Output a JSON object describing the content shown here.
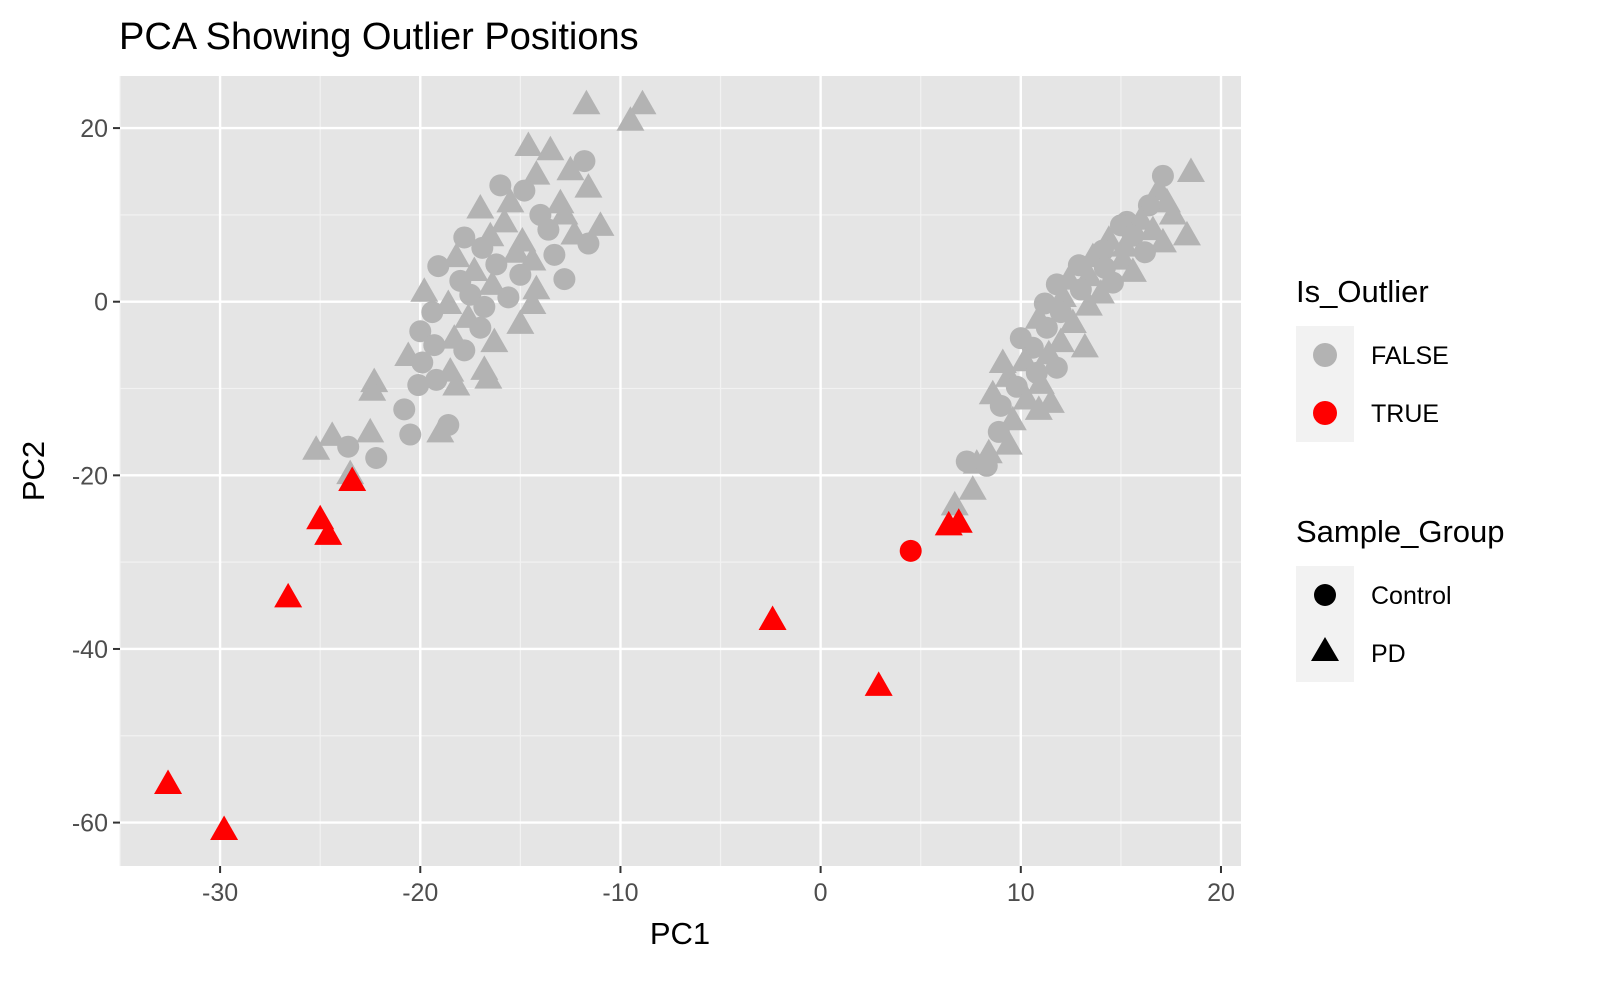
{
  "chart_data": {
    "type": "scatter",
    "title": "PCA Showing Outlier Positions",
    "xlabel": "PC1",
    "ylabel": "PC2",
    "xlim": [
      -35,
      21
    ],
    "ylim": [
      -65,
      26
    ],
    "x_ticks": [
      -30,
      -20,
      -10,
      0,
      10,
      20
    ],
    "y_ticks": [
      -60,
      -40,
      -20,
      0,
      20
    ],
    "grid": true,
    "legend_position": "right",
    "legends": [
      {
        "title": "Is_Outlier",
        "entries": [
          {
            "label": "FALSE",
            "color": "#b3b3b3",
            "shape": "circle"
          },
          {
            "label": "TRUE",
            "color": "#ff0000",
            "shape": "circle"
          }
        ]
      },
      {
        "title": "Sample_Group",
        "entries": [
          {
            "label": "Control",
            "color": "#000000",
            "shape": "circle"
          },
          {
            "label": "PD",
            "color": "#000000",
            "shape": "triangle"
          }
        ]
      }
    ],
    "colors": {
      "FALSE": "#b3b3b3",
      "TRUE": "#ff0000"
    },
    "points": [
      {
        "x": -11.7,
        "y": 22.8,
        "group": "PD",
        "outlier": false
      },
      {
        "x": -8.9,
        "y": 22.8,
        "group": "PD",
        "outlier": false
      },
      {
        "x": -9.5,
        "y": 20.9,
        "group": "PD",
        "outlier": false
      },
      {
        "x": -14.6,
        "y": 18.0,
        "group": "PD",
        "outlier": false
      },
      {
        "x": -13.5,
        "y": 17.5,
        "group": "PD",
        "outlier": false
      },
      {
        "x": -11.8,
        "y": 16.2,
        "group": "Control",
        "outlier": false
      },
      {
        "x": -12.5,
        "y": 15.2,
        "group": "PD",
        "outlier": false
      },
      {
        "x": -14.2,
        "y": 14.7,
        "group": "PD",
        "outlier": false
      },
      {
        "x": -16.0,
        "y": 13.4,
        "group": "Control",
        "outlier": false
      },
      {
        "x": -11.6,
        "y": 13.2,
        "group": "PD",
        "outlier": false
      },
      {
        "x": -14.8,
        "y": 12.8,
        "group": "Control",
        "outlier": false
      },
      {
        "x": -15.5,
        "y": 11.5,
        "group": "PD",
        "outlier": false
      },
      {
        "x": -13.0,
        "y": 11.4,
        "group": "PD",
        "outlier": false
      },
      {
        "x": -17.0,
        "y": 10.8,
        "group": "PD",
        "outlier": false
      },
      {
        "x": -14.0,
        "y": 10.0,
        "group": "Control",
        "outlier": false
      },
      {
        "x": -12.8,
        "y": 10.1,
        "group": "PD",
        "outlier": false
      },
      {
        "x": -15.8,
        "y": 9.2,
        "group": "PD",
        "outlier": false
      },
      {
        "x": -11.0,
        "y": 8.8,
        "group": "PD",
        "outlier": false
      },
      {
        "x": -13.6,
        "y": 8.3,
        "group": "Control",
        "outlier": false
      },
      {
        "x": -12.3,
        "y": 7.8,
        "group": "PD",
        "outlier": false
      },
      {
        "x": -16.5,
        "y": 7.6,
        "group": "PD",
        "outlier": false
      },
      {
        "x": -17.8,
        "y": 7.4,
        "group": "Control",
        "outlier": false
      },
      {
        "x": -14.9,
        "y": 7.0,
        "group": "PD",
        "outlier": false
      },
      {
        "x": -11.6,
        "y": 6.7,
        "group": "Control",
        "outlier": false
      },
      {
        "x": -16.9,
        "y": 6.2,
        "group": "Control",
        "outlier": false
      },
      {
        "x": -15.2,
        "y": 5.7,
        "group": "PD",
        "outlier": false
      },
      {
        "x": -13.3,
        "y": 5.4,
        "group": "Control",
        "outlier": false
      },
      {
        "x": -18.2,
        "y": 5.2,
        "group": "PD",
        "outlier": false
      },
      {
        "x": -14.4,
        "y": 4.8,
        "group": "PD",
        "outlier": false
      },
      {
        "x": -16.2,
        "y": 4.3,
        "group": "Control",
        "outlier": false
      },
      {
        "x": -19.1,
        "y": 4.1,
        "group": "Control",
        "outlier": false
      },
      {
        "x": -17.3,
        "y": 3.6,
        "group": "PD",
        "outlier": false
      },
      {
        "x": -15.0,
        "y": 3.1,
        "group": "Control",
        "outlier": false
      },
      {
        "x": -12.8,
        "y": 2.6,
        "group": "Control",
        "outlier": false
      },
      {
        "x": -18.0,
        "y": 2.4,
        "group": "Control",
        "outlier": false
      },
      {
        "x": -16.4,
        "y": 2.0,
        "group": "PD",
        "outlier": false
      },
      {
        "x": -19.8,
        "y": 1.2,
        "group": "PD",
        "outlier": false
      },
      {
        "x": -14.2,
        "y": 1.5,
        "group": "PD",
        "outlier": false
      },
      {
        "x": -17.5,
        "y": 0.8,
        "group": "Control",
        "outlier": false
      },
      {
        "x": -15.6,
        "y": 0.5,
        "group": "Control",
        "outlier": false
      },
      {
        "x": -18.6,
        "y": -0.2,
        "group": "PD",
        "outlier": false
      },
      {
        "x": -16.8,
        "y": -0.6,
        "group": "Control",
        "outlier": false
      },
      {
        "x": -14.4,
        "y": -0.2,
        "group": "PD",
        "outlier": false
      },
      {
        "x": -19.4,
        "y": -1.2,
        "group": "Control",
        "outlier": false
      },
      {
        "x": -17.6,
        "y": -1.8,
        "group": "PD",
        "outlier": false
      },
      {
        "x": -15.0,
        "y": -2.5,
        "group": "PD",
        "outlier": false
      },
      {
        "x": -20.0,
        "y": -3.4,
        "group": "Control",
        "outlier": false
      },
      {
        "x": -17.0,
        "y": -3.0,
        "group": "Control",
        "outlier": false
      },
      {
        "x": -18.3,
        "y": -4.2,
        "group": "PD",
        "outlier": false
      },
      {
        "x": -19.3,
        "y": -5.0,
        "group": "Control",
        "outlier": false
      },
      {
        "x": -16.3,
        "y": -4.6,
        "group": "PD",
        "outlier": false
      },
      {
        "x": -20.6,
        "y": -6.2,
        "group": "PD",
        "outlier": false
      },
      {
        "x": -17.8,
        "y": -5.6,
        "group": "Control",
        "outlier": false
      },
      {
        "x": -19.9,
        "y": -7.0,
        "group": "Control",
        "outlier": false
      },
      {
        "x": -16.8,
        "y": -7.8,
        "group": "PD",
        "outlier": false
      },
      {
        "x": -18.5,
        "y": -8.0,
        "group": "PD",
        "outlier": false
      },
      {
        "x": -22.3,
        "y": -9.2,
        "group": "PD",
        "outlier": false
      },
      {
        "x": -20.1,
        "y": -9.6,
        "group": "Control",
        "outlier": false
      },
      {
        "x": -19.2,
        "y": -9.0,
        "group": "Control",
        "outlier": false
      },
      {
        "x": -16.6,
        "y": -8.8,
        "group": "PD",
        "outlier": false
      },
      {
        "x": -22.4,
        "y": -10.2,
        "group": "PD",
        "outlier": false
      },
      {
        "x": -18.2,
        "y": -9.6,
        "group": "PD",
        "outlier": false
      },
      {
        "x": -20.8,
        "y": -12.4,
        "group": "Control",
        "outlier": false
      },
      {
        "x": -18.6,
        "y": -14.2,
        "group": "Control",
        "outlier": false
      },
      {
        "x": -24.4,
        "y": -15.4,
        "group": "PD",
        "outlier": false
      },
      {
        "x": -22.5,
        "y": -15.0,
        "group": "PD",
        "outlier": false
      },
      {
        "x": -20.5,
        "y": -15.3,
        "group": "Control",
        "outlier": false
      },
      {
        "x": -19.0,
        "y": -15.0,
        "group": "PD",
        "outlier": false
      },
      {
        "x": -23.6,
        "y": -16.7,
        "group": "Control",
        "outlier": false
      },
      {
        "x": -25.2,
        "y": -17.0,
        "group": "PD",
        "outlier": false
      },
      {
        "x": -22.2,
        "y": -18.0,
        "group": "Control",
        "outlier": false
      },
      {
        "x": -23.5,
        "y": -19.8,
        "group": "PD",
        "outlier": false
      },
      {
        "x": 17.1,
        "y": 14.5,
        "group": "Control",
        "outlier": false
      },
      {
        "x": 18.5,
        "y": 15.0,
        "group": "PD",
        "outlier": false
      },
      {
        "x": 16.9,
        "y": 12.9,
        "group": "PD",
        "outlier": false
      },
      {
        "x": 17.3,
        "y": 11.5,
        "group": "PD",
        "outlier": false
      },
      {
        "x": 16.4,
        "y": 11.1,
        "group": "Control",
        "outlier": false
      },
      {
        "x": 17.6,
        "y": 10.1,
        "group": "PD",
        "outlier": false
      },
      {
        "x": 15.3,
        "y": 9.2,
        "group": "Control",
        "outlier": false
      },
      {
        "x": 16.0,
        "y": 9.5,
        "group": "PD",
        "outlier": false
      },
      {
        "x": 15.0,
        "y": 8.8,
        "group": "Control",
        "outlier": false
      },
      {
        "x": 16.6,
        "y": 8.3,
        "group": "PD",
        "outlier": false
      },
      {
        "x": 18.3,
        "y": 7.7,
        "group": "PD",
        "outlier": false
      },
      {
        "x": 15.6,
        "y": 7.6,
        "group": "Control",
        "outlier": false
      },
      {
        "x": 14.4,
        "y": 7.2,
        "group": "PD",
        "outlier": false
      },
      {
        "x": 17.1,
        "y": 6.9,
        "group": "PD",
        "outlier": false
      },
      {
        "x": 15.2,
        "y": 6.4,
        "group": "PD",
        "outlier": false
      },
      {
        "x": 16.2,
        "y": 5.7,
        "group": "Control",
        "outlier": false
      },
      {
        "x": 14.1,
        "y": 5.9,
        "group": "Control",
        "outlier": false
      },
      {
        "x": 13.6,
        "y": 5.2,
        "group": "PD",
        "outlier": false
      },
      {
        "x": 15.1,
        "y": 4.9,
        "group": "PD",
        "outlier": false
      },
      {
        "x": 12.9,
        "y": 4.2,
        "group": "Control",
        "outlier": false
      },
      {
        "x": 14.2,
        "y": 3.9,
        "group": "Control",
        "outlier": false
      },
      {
        "x": 15.6,
        "y": 3.5,
        "group": "PD",
        "outlier": false
      },
      {
        "x": 13.4,
        "y": 3.0,
        "group": "PD",
        "outlier": false
      },
      {
        "x": 12.4,
        "y": 2.6,
        "group": "PD",
        "outlier": false
      },
      {
        "x": 14.6,
        "y": 2.2,
        "group": "Control",
        "outlier": false
      },
      {
        "x": 11.8,
        "y": 2.0,
        "group": "Control",
        "outlier": false
      },
      {
        "x": 13.0,
        "y": 1.4,
        "group": "Control",
        "outlier": false
      },
      {
        "x": 14.0,
        "y": 1.0,
        "group": "PD",
        "outlier": false
      },
      {
        "x": 12.1,
        "y": 0.6,
        "group": "PD",
        "outlier": false
      },
      {
        "x": 11.2,
        "y": -0.2,
        "group": "Control",
        "outlier": false
      },
      {
        "x": 13.4,
        "y": -0.4,
        "group": "PD",
        "outlier": false
      },
      {
        "x": 12.0,
        "y": -1.2,
        "group": "Control",
        "outlier": false
      },
      {
        "x": 10.9,
        "y": -1.9,
        "group": "PD",
        "outlier": false
      },
      {
        "x": 12.6,
        "y": -2.4,
        "group": "PD",
        "outlier": false
      },
      {
        "x": 11.3,
        "y": -3.0,
        "group": "Control",
        "outlier": false
      },
      {
        "x": 10.0,
        "y": -4.2,
        "group": "Control",
        "outlier": false
      },
      {
        "x": 12.0,
        "y": -4.6,
        "group": "PD",
        "outlier": false
      },
      {
        "x": 13.2,
        "y": -5.2,
        "group": "PD",
        "outlier": false
      },
      {
        "x": 10.6,
        "y": -5.3,
        "group": "Control",
        "outlier": false
      },
      {
        "x": 11.4,
        "y": -6.0,
        "group": "PD",
        "outlier": false
      },
      {
        "x": 10.2,
        "y": -6.8,
        "group": "PD",
        "outlier": false
      },
      {
        "x": 9.1,
        "y": -7.0,
        "group": "PD",
        "outlier": false
      },
      {
        "x": 11.8,
        "y": -7.6,
        "group": "Control",
        "outlier": false
      },
      {
        "x": 10.8,
        "y": -8.2,
        "group": "Control",
        "outlier": false
      },
      {
        "x": 9.4,
        "y": -8.6,
        "group": "PD",
        "outlier": false
      },
      {
        "x": 11.0,
        "y": -9.4,
        "group": "PD",
        "outlier": false
      },
      {
        "x": 9.8,
        "y": -9.8,
        "group": "Control",
        "outlier": false
      },
      {
        "x": 8.6,
        "y": -10.6,
        "group": "PD",
        "outlier": false
      },
      {
        "x": 10.3,
        "y": -11.2,
        "group": "PD",
        "outlier": false
      },
      {
        "x": 11.5,
        "y": -11.6,
        "group": "PD",
        "outlier": false
      },
      {
        "x": 9.0,
        "y": -12.0,
        "group": "Control",
        "outlier": false
      },
      {
        "x": 10.9,
        "y": -12.4,
        "group": "PD",
        "outlier": false
      },
      {
        "x": 9.6,
        "y": -13.6,
        "group": "PD",
        "outlier": false
      },
      {
        "x": 8.9,
        "y": -15.0,
        "group": "Control",
        "outlier": false
      },
      {
        "x": 9.4,
        "y": -16.4,
        "group": "PD",
        "outlier": false
      },
      {
        "x": 8.4,
        "y": -17.4,
        "group": "PD",
        "outlier": false
      },
      {
        "x": 7.3,
        "y": -18.4,
        "group": "Control",
        "outlier": false
      },
      {
        "x": 7.8,
        "y": -18.6,
        "group": "PD",
        "outlier": false
      },
      {
        "x": 8.3,
        "y": -18.9,
        "group": "Control",
        "outlier": false
      },
      {
        "x": 7.6,
        "y": -21.6,
        "group": "PD",
        "outlier": false
      },
      {
        "x": 6.7,
        "y": -23.4,
        "group": "PD",
        "outlier": false
      },
      {
        "x": -32.6,
        "y": -55.5,
        "group": "PD",
        "outlier": true
      },
      {
        "x": -29.8,
        "y": -60.8,
        "group": "PD",
        "outlier": true
      },
      {
        "x": -26.6,
        "y": -34.0,
        "group": "PD",
        "outlier": true
      },
      {
        "x": -25.0,
        "y": -25.0,
        "group": "PD",
        "outlier": true
      },
      {
        "x": -24.6,
        "y": -26.8,
        "group": "PD",
        "outlier": true
      },
      {
        "x": -23.4,
        "y": -20.6,
        "group": "PD",
        "outlier": true
      },
      {
        "x": -2.4,
        "y": -36.6,
        "group": "PD",
        "outlier": true
      },
      {
        "x": 2.9,
        "y": -44.2,
        "group": "PD",
        "outlier": true
      },
      {
        "x": 4.5,
        "y": -28.7,
        "group": "Control",
        "outlier": true
      },
      {
        "x": 6.4,
        "y": -25.7,
        "group": "PD",
        "outlier": true
      },
      {
        "x": 6.9,
        "y": -25.4,
        "group": "PD",
        "outlier": true
      }
    ]
  }
}
